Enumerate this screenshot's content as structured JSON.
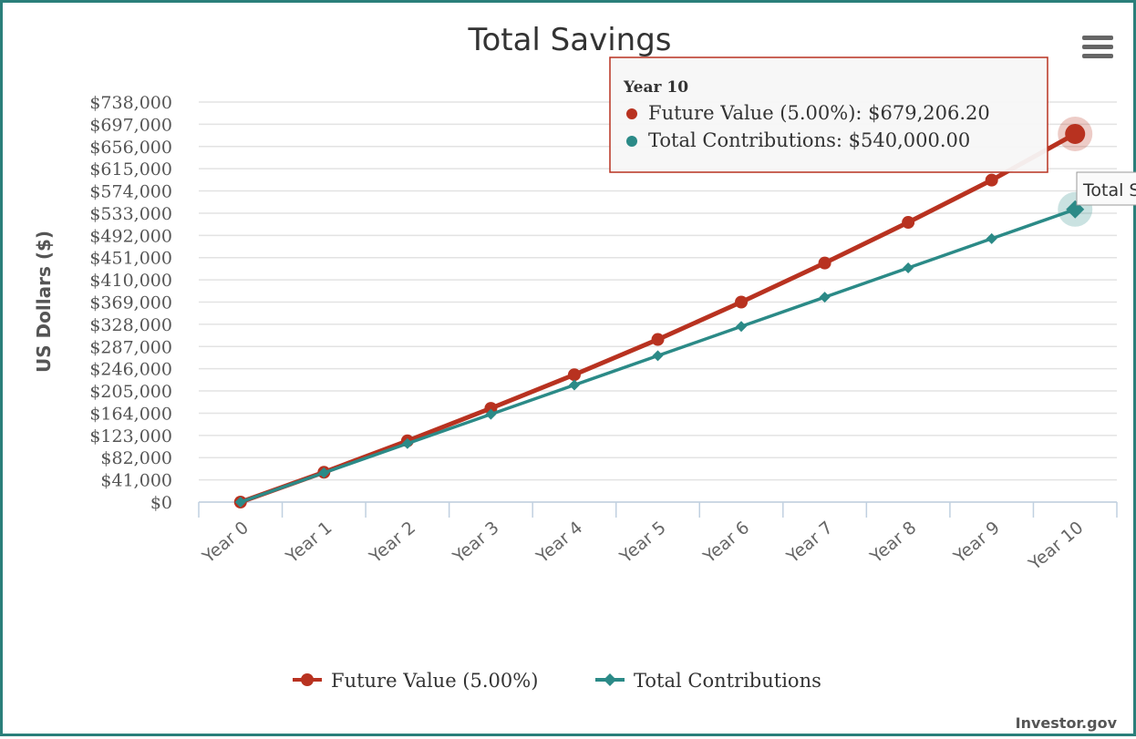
{
  "chart_data": {
    "type": "line",
    "title": "Total Savings",
    "ylabel": "US Dollars ($)",
    "xlabel": "",
    "categories": [
      "Year 0",
      "Year 1",
      "Year 2",
      "Year 3",
      "Year 4",
      "Year 5",
      "Year 6",
      "Year 7",
      "Year 8",
      "Year 9",
      "Year 10"
    ],
    "ylim": [
      0,
      738000
    ],
    "yticks": [
      0,
      41000,
      82000,
      123000,
      164000,
      205000,
      246000,
      287000,
      328000,
      369000,
      410000,
      451000,
      492000,
      533000,
      574000,
      615000,
      656000,
      697000,
      738000
    ],
    "ytick_labels": [
      "$0",
      "$41,000",
      "$82,000",
      "$123,000",
      "$164,000",
      "$205,000",
      "$246,000",
      "$287,000",
      "$328,000",
      "$369,000",
      "$410,000",
      "$451,000",
      "$492,000",
      "$533,000",
      "$574,000",
      "$615,000",
      "$656,000",
      "$697,000",
      "$738,000"
    ],
    "grid": true,
    "legend_position": "bottom-center",
    "series": [
      {
        "name": "Future Value (5.00%)",
        "color": "#b83220",
        "marker": "circle",
        "values": [
          0,
          55000,
          113000,
          173000,
          235000,
          300000,
          369000,
          441000,
          516000,
          594000,
          679206.2
        ]
      },
      {
        "name": "Total Contributions",
        "color": "#2b8a87",
        "marker": "diamond",
        "values": [
          0,
          54000,
          108000,
          162000,
          216000,
          270000,
          324000,
          378000,
          432000,
          486000,
          540000
        ]
      }
    ]
  },
  "tooltip": {
    "header": "Year 10",
    "lines": [
      {
        "label": "Future Value (5.00%)",
        "value": "$679,206.20",
        "color": "#b83220"
      },
      {
        "label": "Total Contributions",
        "value": "$540,000.00",
        "color": "#2b8a87"
      }
    ]
  },
  "partial_tooltip": {
    "text": "Total S"
  },
  "menu": {
    "icon": "hamburger-menu-icon"
  },
  "credit": "Investor.gov"
}
